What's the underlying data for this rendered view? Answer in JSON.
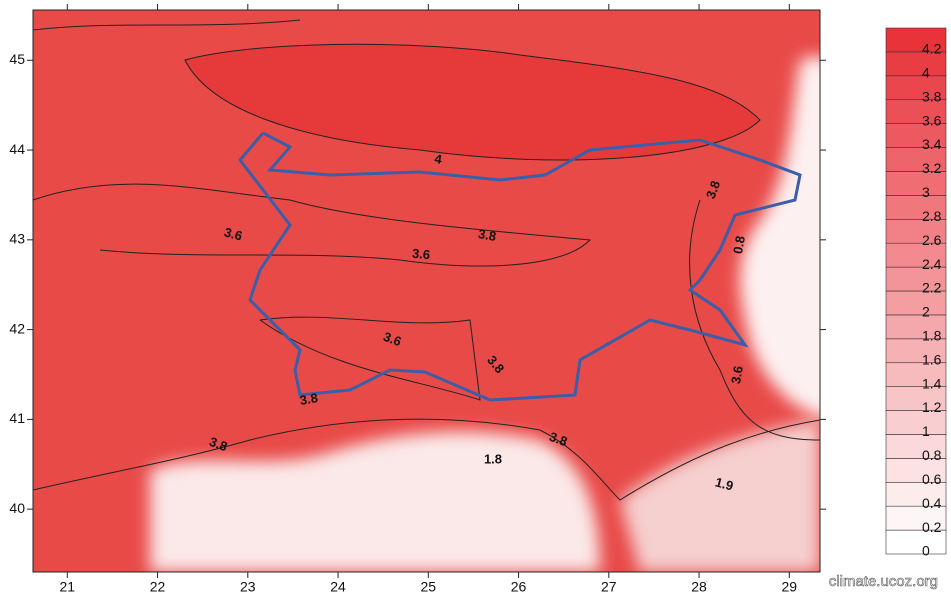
{
  "map": {
    "xlim": [
      20.62,
      29.34
    ],
    "xticks": [
      21,
      22,
      23,
      24,
      25,
      26,
      27,
      28,
      29
    ],
    "ylim": [
      39.3,
      45.56
    ],
    "yticks": [
      40,
      41,
      42,
      43,
      44,
      45
    ],
    "contour_labels": [
      4,
      3.8,
      3.8,
      3.6,
      3.6,
      3.6,
      3.8,
      3.8,
      3.8,
      3.8,
      1.8,
      1.9,
      0.8,
      3.6
    ]
  },
  "colorbar": {
    "lim": [
      0,
      4.4
    ],
    "ticks": [
      0,
      0.2,
      0.4,
      0.6,
      0.8,
      1,
      1.2,
      1.4,
      1.6,
      1.8,
      2,
      2.2,
      2.4,
      2.6,
      2.8,
      3,
      3.2,
      3.4,
      3.6,
      3.8,
      4,
      4.2
    ],
    "color": "#e8333b"
  },
  "watermark": "climate.ucoz.org"
}
